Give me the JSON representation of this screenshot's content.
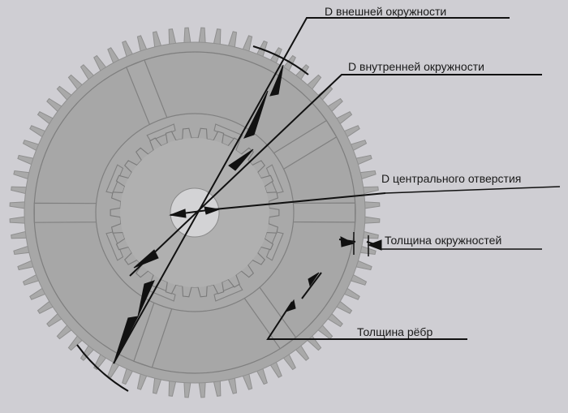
{
  "labels": {
    "outer_diameter": "D внешней окружности",
    "inner_diameter": "D внутренней окружности",
    "center_hole": "D центрального отверстия",
    "rim_thickness": "Толщина окружностей",
    "rib_thickness": "Толщина рёбр"
  },
  "colors": {
    "background": "#cfced3",
    "gear_body": "#a8a8a8",
    "hub": "#b6b6b6",
    "line": "#111111"
  }
}
